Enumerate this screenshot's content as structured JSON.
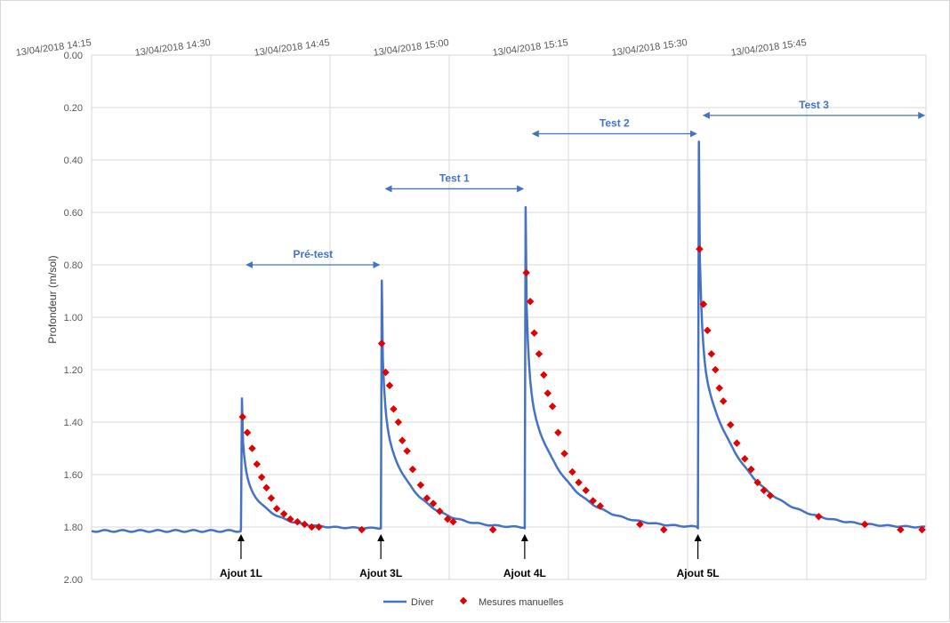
{
  "chart_data": {
    "type": "line",
    "title": "",
    "ylabel": "Profondeur (m/sol)",
    "xlabel": "",
    "y_reversed": true,
    "ylim": [
      0.0,
      2.0
    ],
    "y_ticks": [
      "0.00",
      "0.20",
      "0.40",
      "0.60",
      "0.80",
      "1.00",
      "1.20",
      "1.40",
      "1.60",
      "1.80",
      "2.00"
    ],
    "x_range_min": [
      0,
      105
    ],
    "x_axis_position": "top",
    "x_ticks": [
      {
        "t": 0,
        "label": "13/04/2018 14:15"
      },
      {
        "t": 15,
        "label": "13/04/2018 14:30"
      },
      {
        "t": 30,
        "label": "13/04/2018 14:45"
      },
      {
        "t": 45,
        "label": "13/04/2018 15:00"
      },
      {
        "t": 60,
        "label": "13/04/2018 15:15"
      },
      {
        "t": 75,
        "label": "13/04/2018 15:30"
      },
      {
        "t": 90,
        "label": "13/04/2018 15:45"
      }
    ],
    "grid": true,
    "legend_position": "bottom",
    "series": [
      {
        "name": "Diver",
        "style": "line",
        "color": "#4472c4"
      },
      {
        "name": "Mesures manuelles",
        "style": "marker",
        "color": "#e00000"
      }
    ],
    "events": [
      {
        "t": 18.8,
        "peak": 1.31,
        "label": "Ajout 1L",
        "next": 36.4
      },
      {
        "t": 36.4,
        "peak": 0.86,
        "label": "Ajout 3L",
        "next": 54.5
      },
      {
        "t": 54.5,
        "peak": 0.58,
        "label": "Ajout 4L",
        "next": 76.3
      },
      {
        "t": 76.3,
        "peak": 0.33,
        "label": "Ajout 5L",
        "next": 105
      }
    ],
    "baseline": 1.815,
    "annotations": [
      {
        "label": "Pré-test",
        "t_start": 19.5,
        "t_end": 36.2,
        "y": 0.8
      },
      {
        "label": "Test 1",
        "t_start": 37.0,
        "t_end": 54.3,
        "y": 0.51
      },
      {
        "label": "Test 2",
        "t_start": 55.5,
        "t_end": 76.1,
        "y": 0.3
      },
      {
        "label": "Test 3",
        "t_start": 77.0,
        "t_end": 104.8,
        "y": 0.23
      }
    ],
    "manual_measurements": [
      {
        "t": 19.0,
        "y": 1.38
      },
      {
        "t": 19.6,
        "y": 1.44
      },
      {
        "t": 20.2,
        "y": 1.5
      },
      {
        "t": 20.8,
        "y": 1.56
      },
      {
        "t": 21.4,
        "y": 1.61
      },
      {
        "t": 22.0,
        "y": 1.65
      },
      {
        "t": 22.6,
        "y": 1.69
      },
      {
        "t": 23.3,
        "y": 1.73
      },
      {
        "t": 24.2,
        "y": 1.75
      },
      {
        "t": 25.0,
        "y": 1.77
      },
      {
        "t": 25.9,
        "y": 1.78
      },
      {
        "t": 26.8,
        "y": 1.79
      },
      {
        "t": 27.7,
        "y": 1.8
      },
      {
        "t": 28.6,
        "y": 1.8
      },
      {
        "t": 34.0,
        "y": 1.81
      },
      {
        "t": 36.5,
        "y": 1.1
      },
      {
        "t": 37.0,
        "y": 1.21
      },
      {
        "t": 37.5,
        "y": 1.26
      },
      {
        "t": 38.0,
        "y": 1.35
      },
      {
        "t": 38.6,
        "y": 1.4
      },
      {
        "t": 39.1,
        "y": 1.47
      },
      {
        "t": 39.7,
        "y": 1.51
      },
      {
        "t": 40.4,
        "y": 1.58
      },
      {
        "t": 41.4,
        "y": 1.64
      },
      {
        "t": 42.2,
        "y": 1.69
      },
      {
        "t": 43.0,
        "y": 1.71
      },
      {
        "t": 43.8,
        "y": 1.74
      },
      {
        "t": 44.8,
        "y": 1.77
      },
      {
        "t": 45.5,
        "y": 1.78
      },
      {
        "t": 50.5,
        "y": 1.81
      },
      {
        "t": 54.7,
        "y": 0.83
      },
      {
        "t": 55.2,
        "y": 0.94
      },
      {
        "t": 55.7,
        "y": 1.06
      },
      {
        "t": 56.3,
        "y": 1.14
      },
      {
        "t": 56.9,
        "y": 1.22
      },
      {
        "t": 57.4,
        "y": 1.29
      },
      {
        "t": 58.0,
        "y": 1.34
      },
      {
        "t": 58.7,
        "y": 1.44
      },
      {
        "t": 59.5,
        "y": 1.52
      },
      {
        "t": 60.5,
        "y": 1.59
      },
      {
        "t": 61.3,
        "y": 1.63
      },
      {
        "t": 62.2,
        "y": 1.66
      },
      {
        "t": 63.1,
        "y": 1.7
      },
      {
        "t": 64.0,
        "y": 1.72
      },
      {
        "t": 69.0,
        "y": 1.79
      },
      {
        "t": 72.0,
        "y": 1.81
      },
      {
        "t": 76.5,
        "y": 0.74
      },
      {
        "t": 77.0,
        "y": 0.95
      },
      {
        "t": 77.5,
        "y": 1.05
      },
      {
        "t": 78.0,
        "y": 1.14
      },
      {
        "t": 78.5,
        "y": 1.2
      },
      {
        "t": 79.0,
        "y": 1.27
      },
      {
        "t": 79.5,
        "y": 1.32
      },
      {
        "t": 80.4,
        "y": 1.41
      },
      {
        "t": 81.2,
        "y": 1.48
      },
      {
        "t": 82.2,
        "y": 1.54
      },
      {
        "t": 83.0,
        "y": 1.58
      },
      {
        "t": 83.8,
        "y": 1.63
      },
      {
        "t": 84.6,
        "y": 1.66
      },
      {
        "t": 85.4,
        "y": 1.68
      },
      {
        "t": 91.5,
        "y": 1.76
      },
      {
        "t": 97.3,
        "y": 1.79
      },
      {
        "t": 101.8,
        "y": 1.81
      },
      {
        "t": 104.5,
        "y": 1.81
      }
    ]
  }
}
